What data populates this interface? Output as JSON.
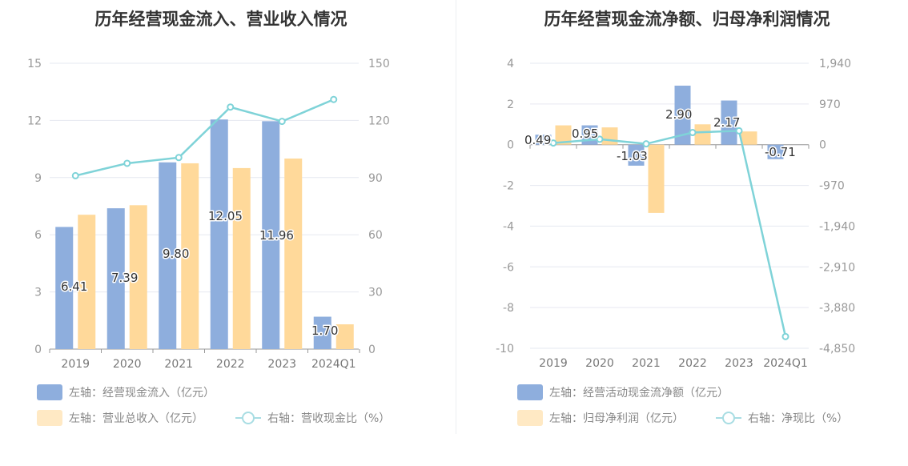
{
  "colors": {
    "bar_primary": "#8eaedd",
    "bar_secondary": "#ffd99a",
    "line": "#7fd3d8",
    "grid": "#e6e8f0",
    "axis": "#999999"
  },
  "chart_data": [
    {
      "type": "bar",
      "title": "历年经营现金流入、营业收入情况",
      "categories": [
        "2019",
        "2020",
        "2021",
        "2022",
        "2023",
        "2024Q1"
      ],
      "left_axis": {
        "ylim": [
          0,
          15
        ],
        "ticks": [
          "0",
          "3",
          "6",
          "9",
          "12",
          "15"
        ]
      },
      "right_axis": {
        "ylim": [
          0,
          150
        ],
        "ticks": [
          "0",
          "30",
          "60",
          "90",
          "120",
          "150"
        ]
      },
      "series": [
        {
          "name": "左轴：经营现金流入（亿元）",
          "axis": "left",
          "kind": "bar",
          "color": "#8eaedd",
          "values": [
            6.41,
            7.39,
            9.8,
            12.05,
            11.96,
            1.7
          ],
          "labels": [
            "6.41",
            "7.39",
            "9.80",
            "12.05",
            "11.96",
            "1.70"
          ]
        },
        {
          "name": "左轴：营业总收入（亿元）",
          "axis": "left",
          "kind": "bar",
          "color": "#ffd99a",
          "values": [
            7.05,
            7.55,
            9.75,
            9.5,
            10.0,
            1.3
          ]
        },
        {
          "name": "右轴：营收现金比（%）",
          "axis": "right",
          "kind": "line",
          "color": "#7fd3d8",
          "values": [
            91,
            97.5,
            100.5,
            127,
            119.5,
            131
          ]
        }
      ],
      "legend_rows": [
        [
          0
        ],
        [
          1,
          2
        ]
      ]
    },
    {
      "type": "bar",
      "title": "历年经营现金流净额、归母净利润情况",
      "categories": [
        "2019",
        "2020",
        "2021",
        "2022",
        "2023",
        "2024Q1"
      ],
      "left_axis": {
        "ylim": [
          -10,
          4
        ],
        "ticks": [
          "-10",
          "-8",
          "-6",
          "-4",
          "-2",
          "0",
          "2",
          "4"
        ]
      },
      "right_axis": {
        "ylim": [
          -4850,
          1940
        ],
        "ticks": [
          "-4,850",
          "-3,880",
          "-2,910",
          "-1,940",
          "-970",
          "0",
          "970",
          "1,940"
        ]
      },
      "series": [
        {
          "name": "左轴：经营活动现金流净额（亿元）",
          "axis": "left",
          "kind": "bar",
          "color": "#8eaedd",
          "values": [
            0.49,
            0.95,
            -1.03,
            2.9,
            2.17,
            -0.71
          ],
          "labels": [
            "0.49",
            "0.95",
            "-1.03",
            "2.90",
            "2.17",
            "-0.71"
          ]
        },
        {
          "name": "左轴：归母净利润（亿元）",
          "axis": "left",
          "kind": "bar",
          "color": "#ffd99a",
          "values": [
            0.95,
            0.85,
            -3.35,
            1.0,
            0.65,
            0
          ]
        },
        {
          "name": "右轴：净现比（%）",
          "axis": "right",
          "kind": "line",
          "color": "#7fd3d8",
          "values": [
            40,
            130,
            20,
            290,
            330,
            -4570
          ]
        }
      ],
      "legend_rows": [
        [
          0
        ],
        [
          1,
          2
        ]
      ]
    }
  ]
}
